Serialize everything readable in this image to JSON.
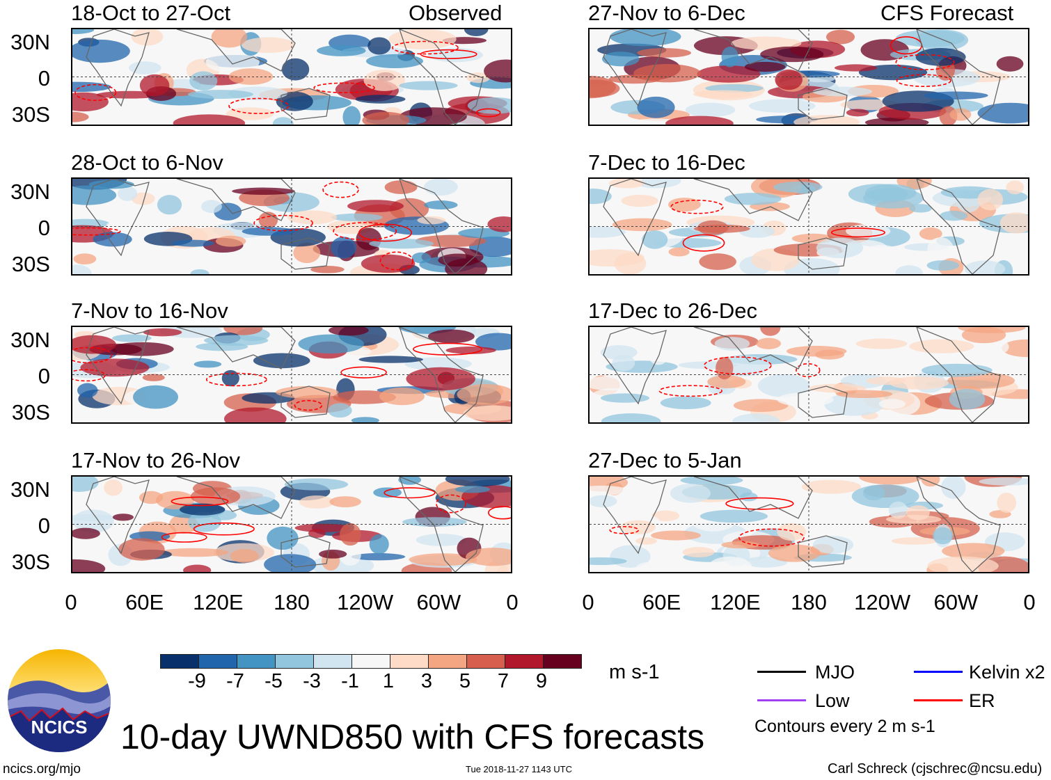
{
  "header": {
    "left_label": "Observed",
    "right_label": "CFS Forecast"
  },
  "panels_observed": [
    {
      "title": "18-Oct to 27-Oct"
    },
    {
      "title": "28-Oct to 6-Nov"
    },
    {
      "title": "7-Nov to 16-Nov"
    },
    {
      "title": "17-Nov to 26-Nov"
    }
  ],
  "panels_forecast": [
    {
      "title": "27-Nov to 6-Dec"
    },
    {
      "title": "7-Dec to 16-Dec"
    },
    {
      "title": "17-Dec to 26-Dec"
    },
    {
      "title": "27-Dec to 5-Jan"
    }
  ],
  "lat_labels": [
    "30N",
    "0",
    "30S"
  ],
  "lon_labels": [
    "0",
    "60E",
    "120E",
    "180",
    "120W",
    "60W",
    "0"
  ],
  "colorbar": {
    "colors": [
      "#08306b",
      "#2166ac",
      "#4393c3",
      "#92c5de",
      "#d1e5f0",
      "#f7f7f7",
      "#fddbc7",
      "#f4a582",
      "#d6604d",
      "#b2182b",
      "#67001f"
    ],
    "labels": [
      "-9",
      "-7",
      "-5",
      "-3",
      "-1",
      "1",
      "3",
      "5",
      "7",
      "9"
    ],
    "units": "m s-1"
  },
  "legend": {
    "items": [
      {
        "label": "MJO",
        "color": "#000000"
      },
      {
        "label": "Kelvin x2",
        "color": "#0000ff"
      },
      {
        "label": "Low",
        "color": "#a040f0"
      },
      {
        "label": "ER",
        "color": "#ff0000"
      }
    ],
    "contours_note": "Contours every 2 m s-1"
  },
  "logo": {
    "text": "NCICS"
  },
  "footer": {
    "title": "10-day UWND850 with CFS forecasts",
    "url": "ncics.org/mjo",
    "timestamp": "Tue 2018-11-27 1143 UTC",
    "author": "Carl Schreck (cjschrec@ncsu.edu)"
  }
}
